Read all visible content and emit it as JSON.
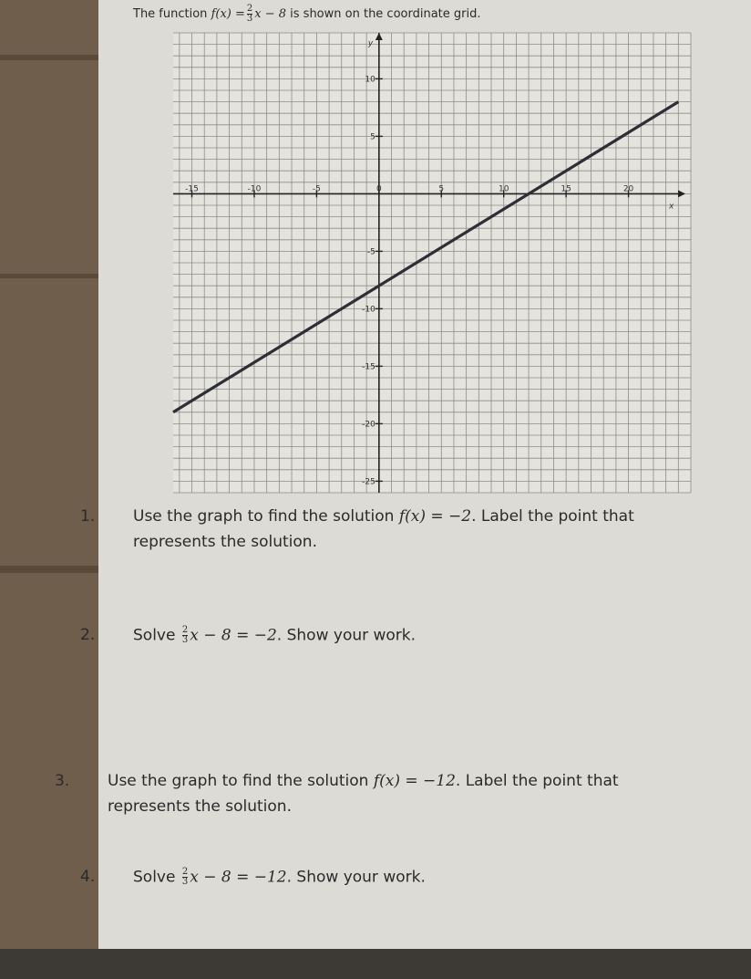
{
  "header": {
    "lead": "The function",
    "math": "f(x) =",
    "frac": {
      "num": "2",
      "den": "3"
    },
    "math_tail": "x − 8",
    "tail": "is shown on the coordinate grid."
  },
  "graph": {
    "xlim": [
      -16.5,
      25
    ],
    "ylim": [
      -26,
      14
    ],
    "xticks": [
      -15,
      -10,
      -5,
      0,
      5,
      10,
      15,
      20
    ],
    "yticks": [
      10,
      5,
      -5,
      -10,
      -15,
      -20,
      -25
    ],
    "xlabel": "x",
    "ylabel": "y",
    "line": {
      "x": [
        -16.5,
        24
      ],
      "y": [
        -19,
        8
      ]
    }
  },
  "questions": [
    {
      "number": "1.",
      "text": "Use the graph to find the solution",
      "math": "f(x) = −2",
      "tail": ". Label the point that",
      "line2": "represents the solution."
    },
    {
      "number": "2.",
      "text": "Solve",
      "frac": {
        "num": "2",
        "den": "3"
      },
      "math": "x − 8 = −2",
      "tail": ". Show your work."
    },
    {
      "number": "3.",
      "text": "Use the graph to find the solution",
      "math": "f(x) = −12",
      "tail": ". Label the point that",
      "line2": "represents the solution."
    },
    {
      "number": "4.",
      "text": "Solve",
      "frac": {
        "num": "2",
        "den": "3"
      },
      "math": "x − 8 = −12",
      "tail": ". Show your work."
    }
  ]
}
